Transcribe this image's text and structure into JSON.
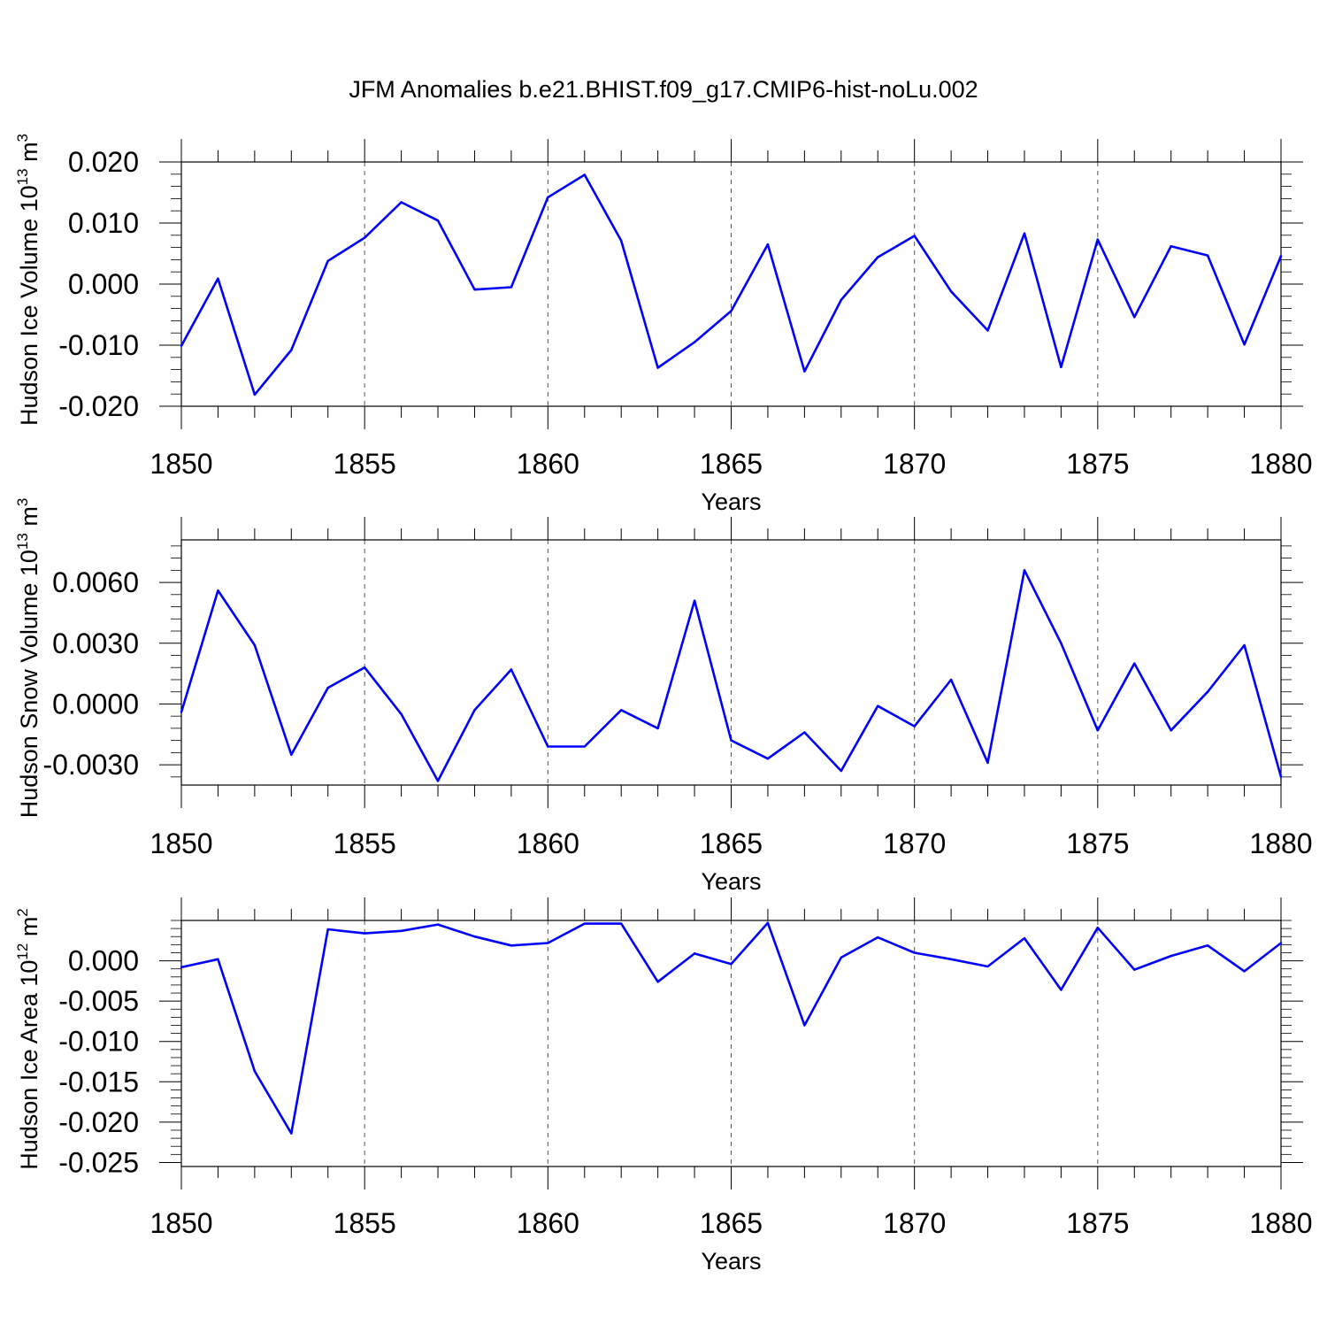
{
  "title": "JFM Anomalies b.e21.BHIST.f09_g17.CMIP6-hist-noLu.002",
  "chart_data": [
    {
      "type": "line",
      "title": "JFM Anomalies b.e21.BHIST.f09_g17.CMIP6-hist-noLu.002",
      "ylabel": "Hudson Ice Volume 10",
      "ylabel_exp": "13",
      "ylabel_unit": "m",
      "ylabel_unit_exp": "3",
      "xlabel": "Years",
      "xlim": [
        1850,
        1880
      ],
      "ylim": [
        -0.02,
        0.02
      ],
      "yticks": [
        -0.02,
        -0.01,
        0.0,
        0.01,
        0.02
      ],
      "ytick_labels": [
        "-0.020",
        "-0.010",
        "0.000",
        "0.010",
        "0.020"
      ],
      "xticks": [
        1850,
        1855,
        1860,
        1865,
        1870,
        1875,
        1880
      ],
      "xtick_labels": [
        "1850",
        "1855",
        "1860",
        "1865",
        "1870",
        "1875",
        "1880"
      ],
      "grid": "vertical dashed at major x ticks",
      "line_color": "#0000ff",
      "x": [
        1850,
        1851,
        1852,
        1853,
        1854,
        1855,
        1856,
        1857,
        1858,
        1859,
        1860,
        1861,
        1862,
        1863,
        1864,
        1865,
        1866,
        1867,
        1868,
        1869,
        1870,
        1871,
        1872,
        1873,
        1874,
        1875,
        1876,
        1877,
        1878,
        1879,
        1880
      ],
      "values": [
        -0.0101,
        0.0009,
        -0.0181,
        -0.0108,
        0.0038,
        0.0076,
        0.0134,
        0.0104,
        -0.0009,
        -0.0005,
        0.0142,
        0.0179,
        0.0071,
        -0.0137,
        -0.0095,
        -0.0044,
        0.0065,
        -0.0143,
        -0.0026,
        0.0044,
        0.0079,
        -0.0012,
        -0.0076,
        0.0083,
        -0.0136,
        0.0073,
        -0.0054,
        0.0062,
        0.0047,
        -0.0099,
        0.0046
      ]
    },
    {
      "type": "line",
      "ylabel": "Hudson Snow Volume 10",
      "ylabel_exp": "13",
      "ylabel_unit": "m",
      "ylabel_unit_exp": "3",
      "xlabel": "Years",
      "xlim": [
        1850,
        1880
      ],
      "ylim": [
        -0.004,
        0.0081
      ],
      "yticks": [
        -0.003,
        0.0,
        0.003,
        0.006
      ],
      "ytick_labels": [
        "-0.0030",
        "0.0000",
        "0.0030",
        "0.0060"
      ],
      "xticks": [
        1850,
        1855,
        1860,
        1865,
        1870,
        1875,
        1880
      ],
      "xtick_labels": [
        "1850",
        "1855",
        "1860",
        "1865",
        "1870",
        "1875",
        "1880"
      ],
      "grid": "vertical dashed at major x ticks",
      "line_color": "#0000ff",
      "x": [
        1850,
        1851,
        1852,
        1853,
        1854,
        1855,
        1856,
        1857,
        1858,
        1859,
        1860,
        1861,
        1862,
        1863,
        1864,
        1865,
        1866,
        1867,
        1868,
        1869,
        1870,
        1871,
        1872,
        1873,
        1874,
        1875,
        1876,
        1877,
        1878,
        1879,
        1880
      ],
      "values": [
        -0.0004,
        0.0056,
        0.0029,
        -0.0025,
        0.0008,
        0.0018,
        -0.0005,
        -0.0038,
        -0.0003,
        0.0017,
        -0.0021,
        -0.0021,
        -0.0003,
        -0.0012,
        0.0051,
        -0.0018,
        -0.0027,
        -0.0014,
        -0.0033,
        -0.0001,
        -0.0011,
        0.0012,
        -0.0029,
        0.0066,
        0.003,
        -0.0013,
        0.002,
        -0.0013,
        0.0006,
        0.0029,
        -0.0036
      ]
    },
    {
      "type": "line",
      "ylabel": "Hudson Ice Area 10",
      "ylabel_exp": "12",
      "ylabel_unit": "m",
      "ylabel_unit_exp": "2",
      "xlabel": "Years",
      "xlim": [
        1850,
        1880
      ],
      "ylim": [
        -0.0255,
        0.005
      ],
      "yticks": [
        -0.025,
        -0.02,
        -0.015,
        -0.01,
        -0.005,
        0.0
      ],
      "ytick_labels": [
        "-0.025",
        "-0.020",
        "-0.015",
        "-0.010",
        "-0.005",
        "0.000"
      ],
      "xticks": [
        1850,
        1855,
        1860,
        1865,
        1870,
        1875,
        1880
      ],
      "xtick_labels": [
        "1850",
        "1855",
        "1860",
        "1865",
        "1870",
        "1875",
        "1880"
      ],
      "grid": "vertical dashed at major x ticks",
      "line_color": "#0000ff",
      "x": [
        1850,
        1851,
        1852,
        1853,
        1854,
        1855,
        1856,
        1857,
        1858,
        1859,
        1860,
        1861,
        1862,
        1863,
        1864,
        1865,
        1866,
        1867,
        1868,
        1869,
        1870,
        1871,
        1872,
        1873,
        1874,
        1875,
        1876,
        1877,
        1878,
        1879,
        1880
      ],
      "values": [
        -0.0008,
        0.0002,
        -0.0137,
        -0.0214,
        0.0039,
        0.0034,
        0.0037,
        0.0045,
        0.003,
        0.0019,
        0.0022,
        0.0046,
        0.0046,
        -0.0026,
        0.0009,
        -0.0004,
        0.0047,
        -0.008,
        0.0004,
        0.0029,
        0.001,
        0.0002,
        -0.0007,
        0.0028,
        -0.0036,
        0.0041,
        -0.0011,
        0.0006,
        0.0019,
        -0.0013,
        0.0022
      ]
    }
  ]
}
